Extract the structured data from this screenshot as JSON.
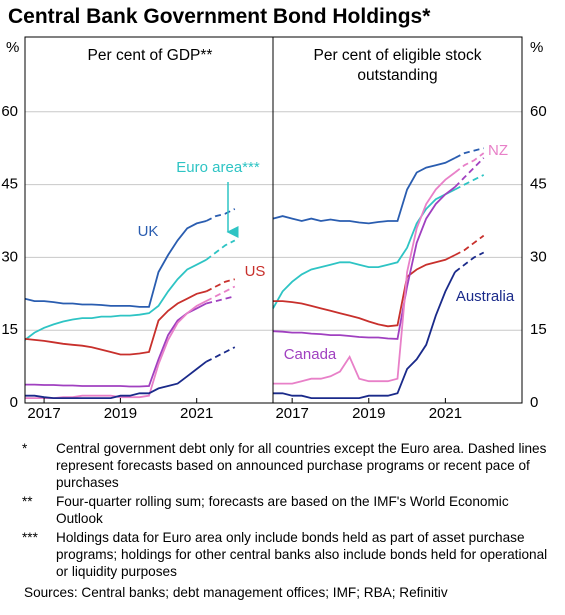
{
  "title": "Central Bank Government Bond Holdings*",
  "chart_data": [
    {
      "type": "line",
      "subtitle": "Per cent of GDP**",
      "y_unit": "%",
      "x": [
        2016.5,
        2016.75,
        2017,
        2017.25,
        2017.5,
        2017.75,
        2018,
        2018.25,
        2018.5,
        2018.75,
        2019,
        2019.25,
        2019.5,
        2019.75,
        2020,
        2020.25,
        2020.5,
        2020.75,
        2021,
        2021.25
      ],
      "forecast_x": [
        2021.25,
        2021.5,
        2021.75,
        2022
      ],
      "xlim": [
        2016.5,
        2023
      ],
      "xticks": [
        2017,
        2019,
        2021
      ],
      "ylim": [
        0,
        75
      ],
      "yticks": [
        0,
        15,
        30,
        45,
        60
      ],
      "grid": true,
      "series": [
        {
          "name": "UK",
          "color": "#2a5db0",
          "values": [
            21.5,
            21,
            21,
            20.8,
            20.5,
            20.5,
            20.3,
            20.3,
            20.2,
            20,
            20,
            20,
            19.8,
            19.8,
            27,
            30.5,
            33.5,
            36,
            37,
            37.5
          ],
          "forecast": {
            "values": [
              37.5,
              38.5,
              39,
              40
            ]
          }
        },
        {
          "name": "Euro area***",
          "color": "#2ec4c4",
          "values": [
            13,
            14.5,
            15.5,
            16.2,
            16.8,
            17.2,
            17.5,
            17.5,
            17.8,
            17.8,
            18,
            18,
            18.2,
            18.5,
            20,
            23,
            25.5,
            27.5,
            28.5,
            29.5
          ],
          "forecast": {
            "values": [
              29.5,
              31,
              32.5,
              33.5
            ]
          }
        },
        {
          "name": "US",
          "color": "#c8302c",
          "values": [
            13.2,
            13,
            12.8,
            12.5,
            12.2,
            12,
            11.8,
            11.5,
            11,
            10.5,
            10,
            10,
            10.2,
            10.5,
            17,
            19,
            20.5,
            21.5,
            22.5,
            23
          ],
          "forecast": {
            "values": [
              23,
              24,
              25,
              25.5
            ]
          }
        },
        {
          "color": "#a040c0",
          "values": [
            3.8,
            3.8,
            3.7,
            3.7,
            3.6,
            3.6,
            3.5,
            3.5,
            3.5,
            3.5,
            3.5,
            3.4,
            3.4,
            3.5,
            9,
            14,
            17,
            18.5,
            19.5,
            20.5
          ],
          "forecast": {
            "values": [
              20.5,
              21,
              21.5,
              22
            ]
          }
        },
        {
          "color": "#e880c8",
          "values": [
            1,
            1,
            1,
            1,
            1.2,
            1.2,
            1.5,
            1.5,
            1.5,
            1.5,
            1.2,
            1.2,
            1.2,
            1.5,
            8,
            13,
            16.5,
            18.5,
            20,
            21
          ],
          "forecast": {
            "values": [
              21,
              22,
              23,
              24
            ]
          }
        },
        {
          "color": "#1a2a8a",
          "values": [
            1.5,
            1.5,
            1.2,
            1,
            1,
            1,
            1,
            1,
            1,
            1,
            1.5,
            1.5,
            2,
            2,
            3,
            3.5,
            4,
            5.5,
            7,
            8.5
          ],
          "forecast": {
            "values": [
              8.5,
              9.5,
              10.5,
              11.5
            ]
          }
        }
      ]
    },
    {
      "type": "line",
      "subtitle": "Per cent of eligible stock outstanding",
      "y_unit": "%",
      "x": [
        2016.5,
        2016.75,
        2017,
        2017.25,
        2017.5,
        2017.75,
        2018,
        2018.25,
        2018.5,
        2018.75,
        2019,
        2019.25,
        2019.5,
        2019.75,
        2020,
        2020.25,
        2020.5,
        2020.75,
        2021,
        2021.25
      ],
      "forecast_x": [
        2021.25,
        2021.5,
        2021.75,
        2022
      ],
      "xlim": [
        2016.5,
        2023
      ],
      "xticks": [
        2017,
        2019,
        2021
      ],
      "ylim": [
        0,
        75
      ],
      "yticks": [
        0,
        15,
        30,
        45,
        60
      ],
      "grid": true,
      "series": [
        {
          "color": "#2a5db0",
          "values": [
            38,
            38.5,
            38,
            37.5,
            38,
            37.5,
            37.8,
            37.5,
            37.5,
            37.2,
            37,
            37.3,
            37.5,
            37.5,
            44,
            47.5,
            48.5,
            49,
            49.5,
            50.5
          ],
          "forecast": {
            "values": [
              50.5,
              51.5,
              52,
              52.5
            ]
          }
        },
        {
          "color": "#2ec4c4",
          "values": [
            19.5,
            23,
            25,
            26.5,
            27.5,
            28,
            28.5,
            29,
            29,
            28.5,
            28,
            28,
            28.5,
            29,
            32,
            37,
            40,
            42,
            43,
            44
          ],
          "forecast": {
            "values": [
              44,
              45,
              46,
              47
            ]
          }
        },
        {
          "color": "#c8302c",
          "values": [
            21,
            21,
            20.8,
            20.5,
            20,
            19.5,
            19,
            18.5,
            18,
            17.5,
            16.8,
            16.2,
            15.8,
            16,
            26,
            27.5,
            28.5,
            29,
            29.5,
            30.5
          ],
          "forecast": {
            "values": [
              30.5,
              31.5,
              33,
              34.5
            ]
          }
        },
        {
          "name": "Canada",
          "color": "#a040c0",
          "values": [
            14.8,
            14.7,
            14.5,
            14.5,
            14.3,
            14.2,
            14,
            14,
            13.8,
            13.6,
            13.5,
            13.5,
            13.3,
            13.2,
            24,
            33,
            38,
            41,
            43,
            44.5
          ],
          "forecast": {
            "values": [
              44.5,
              46.5,
              48.5,
              50.5
            ]
          }
        },
        {
          "name": "NZ",
          "color": "#e880c8",
          "values": [
            4,
            4,
            4,
            4.5,
            5,
            5,
            5.5,
            6.5,
            9.5,
            5,
            4.5,
            4.5,
            4.5,
            5,
            27,
            36,
            41,
            44,
            46,
            47.5
          ],
          "forecast": {
            "values": [
              47.5,
              49,
              50,
              51.5
            ]
          }
        },
        {
          "name": "Australia",
          "color": "#1a2a8a",
          "values": [
            2,
            2,
            1.5,
            1.5,
            1,
            1,
            1,
            1,
            1,
            1,
            1.5,
            1.5,
            1.5,
            2,
            7,
            9,
            12,
            18,
            23,
            27
          ],
          "forecast": {
            "values": [
              27,
              28.5,
              30,
              31
            ]
          }
        }
      ]
    }
  ],
  "footnotes": [
    {
      "marker": "*",
      "text": "Central government debt only for all countries except the Euro area. Dashed lines represent forecasts based on announced purchase programs or recent pace of purchases"
    },
    {
      "marker": "**",
      "text": "Four-quarter rolling sum; forecasts are based on the IMF's World Economic Outlook"
    },
    {
      "marker": "***",
      "text": "Holdings data for Euro area only include bonds held as part of asset purchase programs; holdings for other central banks also include bonds held for operational or liquidity purposes"
    }
  ],
  "source": "Sources: Central banks; debt management offices; IMF; RBA; Refinitiv"
}
